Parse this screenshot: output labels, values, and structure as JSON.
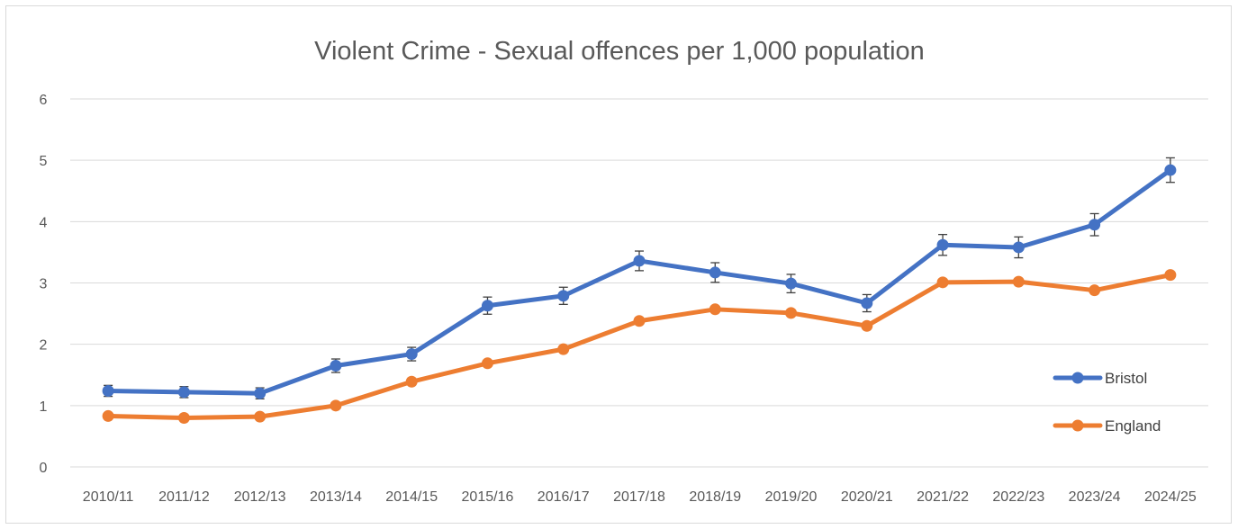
{
  "chart_data": {
    "type": "line",
    "title": "Violent Crime - Sexual offences per 1,000 population",
    "xlabel": "",
    "ylabel": "",
    "categories": [
      "2010/11",
      "2011/12",
      "2012/13",
      "2013/14",
      "2014/15",
      "2015/16",
      "2016/17",
      "2017/18",
      "2018/19",
      "2019/20",
      "2020/21",
      "2021/22",
      "2022/23",
      "2023/24",
      "2024/25"
    ],
    "ylim": [
      0,
      6
    ],
    "yticks": [
      "0",
      "1",
      "2",
      "3",
      "4",
      "5",
      "6"
    ],
    "grid": true,
    "legend": "right",
    "error_bars": "Bristol",
    "series": [
      {
        "name": "Bristol",
        "color": "#4472c4",
        "values": [
          1.24,
          1.22,
          1.2,
          1.65,
          1.84,
          2.63,
          2.79,
          3.36,
          3.17,
          2.99,
          2.67,
          3.62,
          3.58,
          3.95,
          4.84
        ],
        "error": [
          0.09,
          0.09,
          0.09,
          0.11,
          0.11,
          0.14,
          0.14,
          0.16,
          0.16,
          0.15,
          0.14,
          0.17,
          0.17,
          0.18,
          0.2
        ]
      },
      {
        "name": "England",
        "color": "#ed7d31",
        "values": [
          0.83,
          0.8,
          0.82,
          1.0,
          1.39,
          1.69,
          1.92,
          2.38,
          2.57,
          2.51,
          2.3,
          3.01,
          3.02,
          2.88,
          3.13
        ]
      }
    ]
  }
}
